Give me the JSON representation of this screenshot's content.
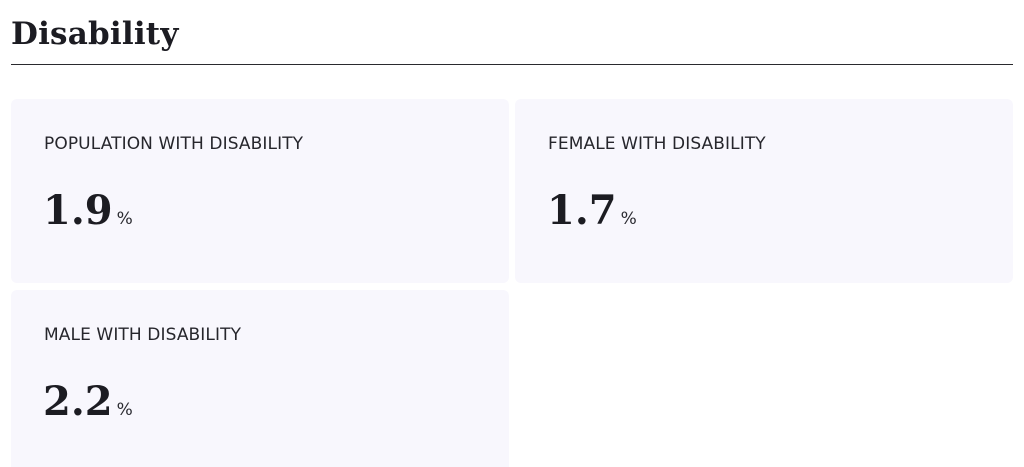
{
  "section": {
    "title": "Disability"
  },
  "cards": [
    {
      "label": "POPULATION WITH DISABILITY",
      "value": "1.9",
      "unit": "%"
    },
    {
      "label": "FEMALE WITH DISABILITY",
      "value": "1.7",
      "unit": "%"
    },
    {
      "label": "MALE WITH DISABILITY",
      "value": "2.2",
      "unit": "%"
    }
  ],
  "colors": {
    "card_background": "#f8f7fd",
    "text": "#1c1c22",
    "divider": "#2a2a2e"
  }
}
